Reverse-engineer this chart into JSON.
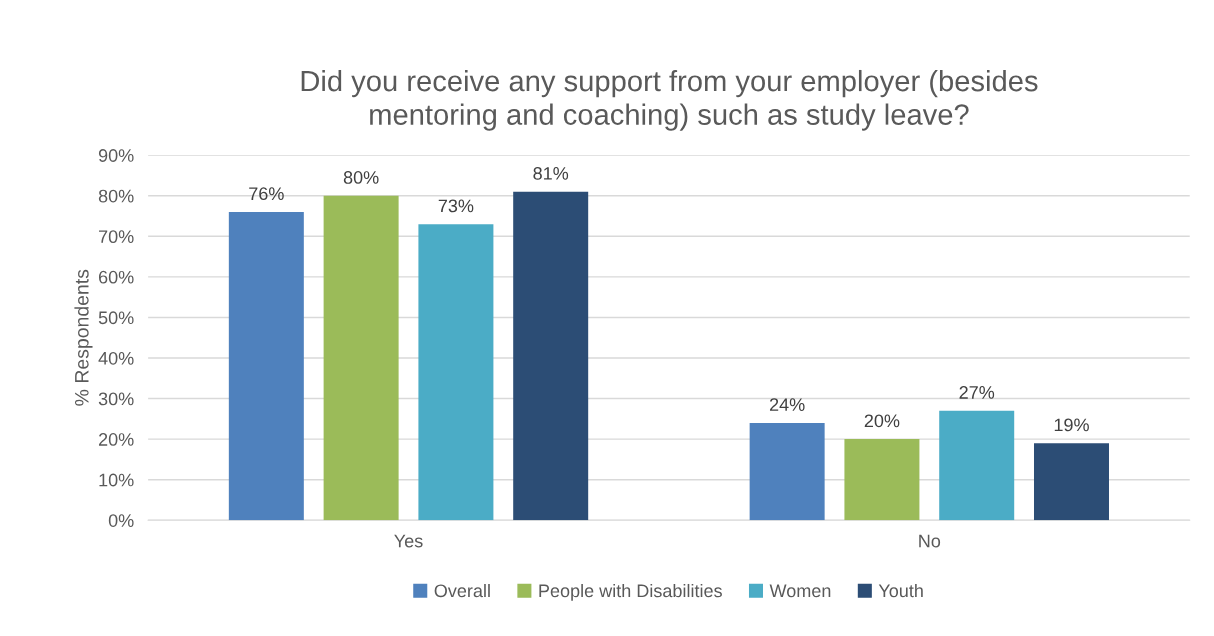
{
  "chart_data": {
    "type": "bar",
    "title": "Did you receive any support from your employer (besides\nmentoring and coaching) such as study leave?",
    "ylabel": "% Respondents",
    "categories": [
      "Yes",
      "No"
    ],
    "series": [
      {
        "name": "Overall",
        "color": "#4f81bd",
        "values": [
          76,
          24
        ],
        "value_labels": [
          "76%",
          "24%"
        ]
      },
      {
        "name": "People with Disabilities",
        "color": "#9bbb59",
        "values": [
          80,
          20
        ],
        "value_labels": [
          "80%",
          "20%"
        ]
      },
      {
        "name": "Women",
        "color": "#4bacc6",
        "values": [
          73,
          27
        ],
        "value_labels": [
          "73%",
          "27%"
        ]
      },
      {
        "name": "Youth",
        "color": "#2c4d75",
        "values": [
          81,
          19
        ],
        "value_labels": [
          "81%",
          "19%"
        ]
      }
    ],
    "ylim": [
      0,
      90
    ],
    "yticks": [
      {
        "value": 0,
        "label": "0%"
      },
      {
        "value": 10,
        "label": "10%"
      },
      {
        "value": 20,
        "label": "20%"
      },
      {
        "value": 30,
        "label": "30%"
      },
      {
        "value": 40,
        "label": "40%"
      },
      {
        "value": 50,
        "label": "50%"
      },
      {
        "value": 60,
        "label": "60%"
      },
      {
        "value": 70,
        "label": "70%"
      },
      {
        "value": 80,
        "label": "80%"
      },
      {
        "value": 90,
        "label": "90%"
      }
    ],
    "grid": "y",
    "legend": "bottom"
  }
}
